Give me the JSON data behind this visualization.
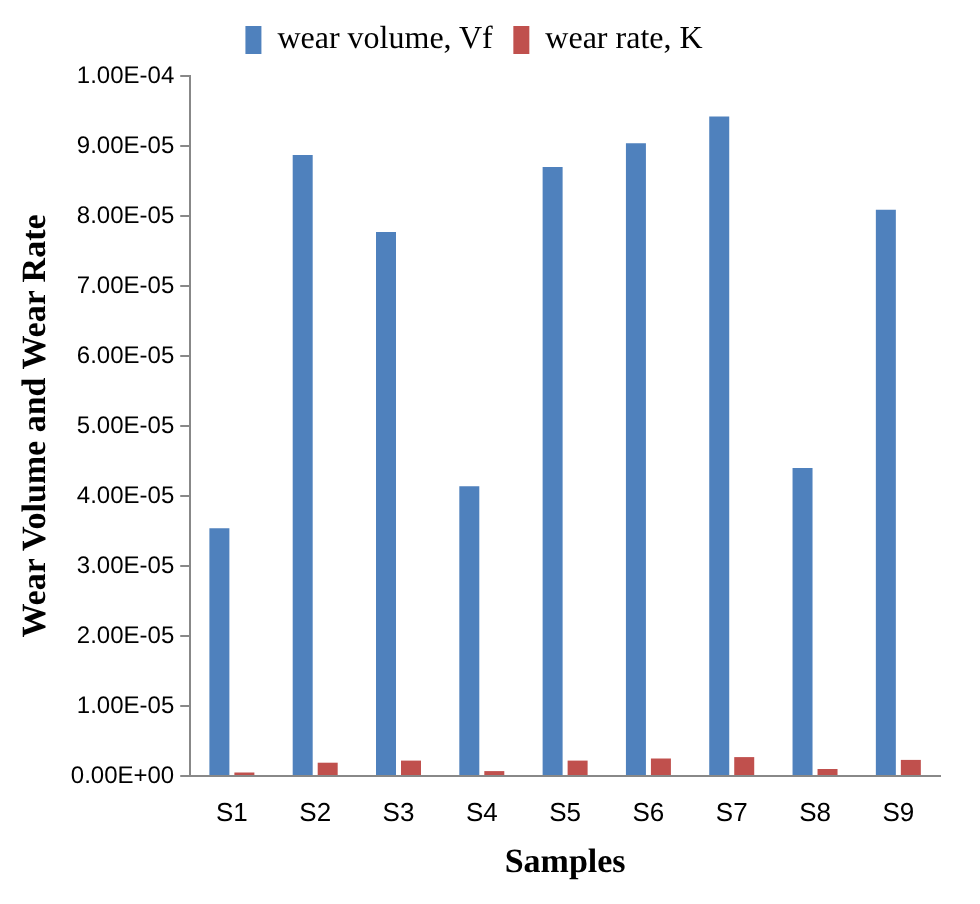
{
  "chart_data": {
    "type": "bar",
    "xlabel": "Samples",
    "ylabel": "Wear Volume and Wear Rate",
    "categories": [
      "S1",
      "S2",
      "S3",
      "S4",
      "S5",
      "S6",
      "S7",
      "S8",
      "S9"
    ],
    "series": [
      {
        "name": "wear volume, Vf",
        "color": "#4f81bd",
        "values": [
          3.54e-05,
          8.87e-05,
          7.77e-05,
          4.14e-05,
          8.7e-05,
          9.04e-05,
          9.42e-05,
          4.4e-05,
          8.09e-05
        ]
      },
      {
        "name": "wear rate, K",
        "color": "#c0504d",
        "values": [
          5e-07,
          1.9e-06,
          2.2e-06,
          7e-07,
          2.2e-06,
          2.5e-06,
          2.7e-06,
          1e-06,
          2.3e-06
        ]
      }
    ],
    "ylim": [
      0,
      0.0001
    ],
    "yticks": [
      {
        "value": 0,
        "label": "0.00E+00"
      },
      {
        "value": 1e-05,
        "label": "1.00E-05"
      },
      {
        "value": 2e-05,
        "label": "2.00E-05"
      },
      {
        "value": 3e-05,
        "label": "3.00E-05"
      },
      {
        "value": 4e-05,
        "label": "4.00E-05"
      },
      {
        "value": 5e-05,
        "label": "5.00E-05"
      },
      {
        "value": 6e-05,
        "label": "6.00E-05"
      },
      {
        "value": 7e-05,
        "label": "7.00E-05"
      },
      {
        "value": 8e-05,
        "label": "8.00E-05"
      },
      {
        "value": 9e-05,
        "label": "9.00E-05"
      },
      {
        "value": 0.0001,
        "label": "1.00E-04"
      }
    ],
    "grid": false,
    "legend": "top"
  }
}
